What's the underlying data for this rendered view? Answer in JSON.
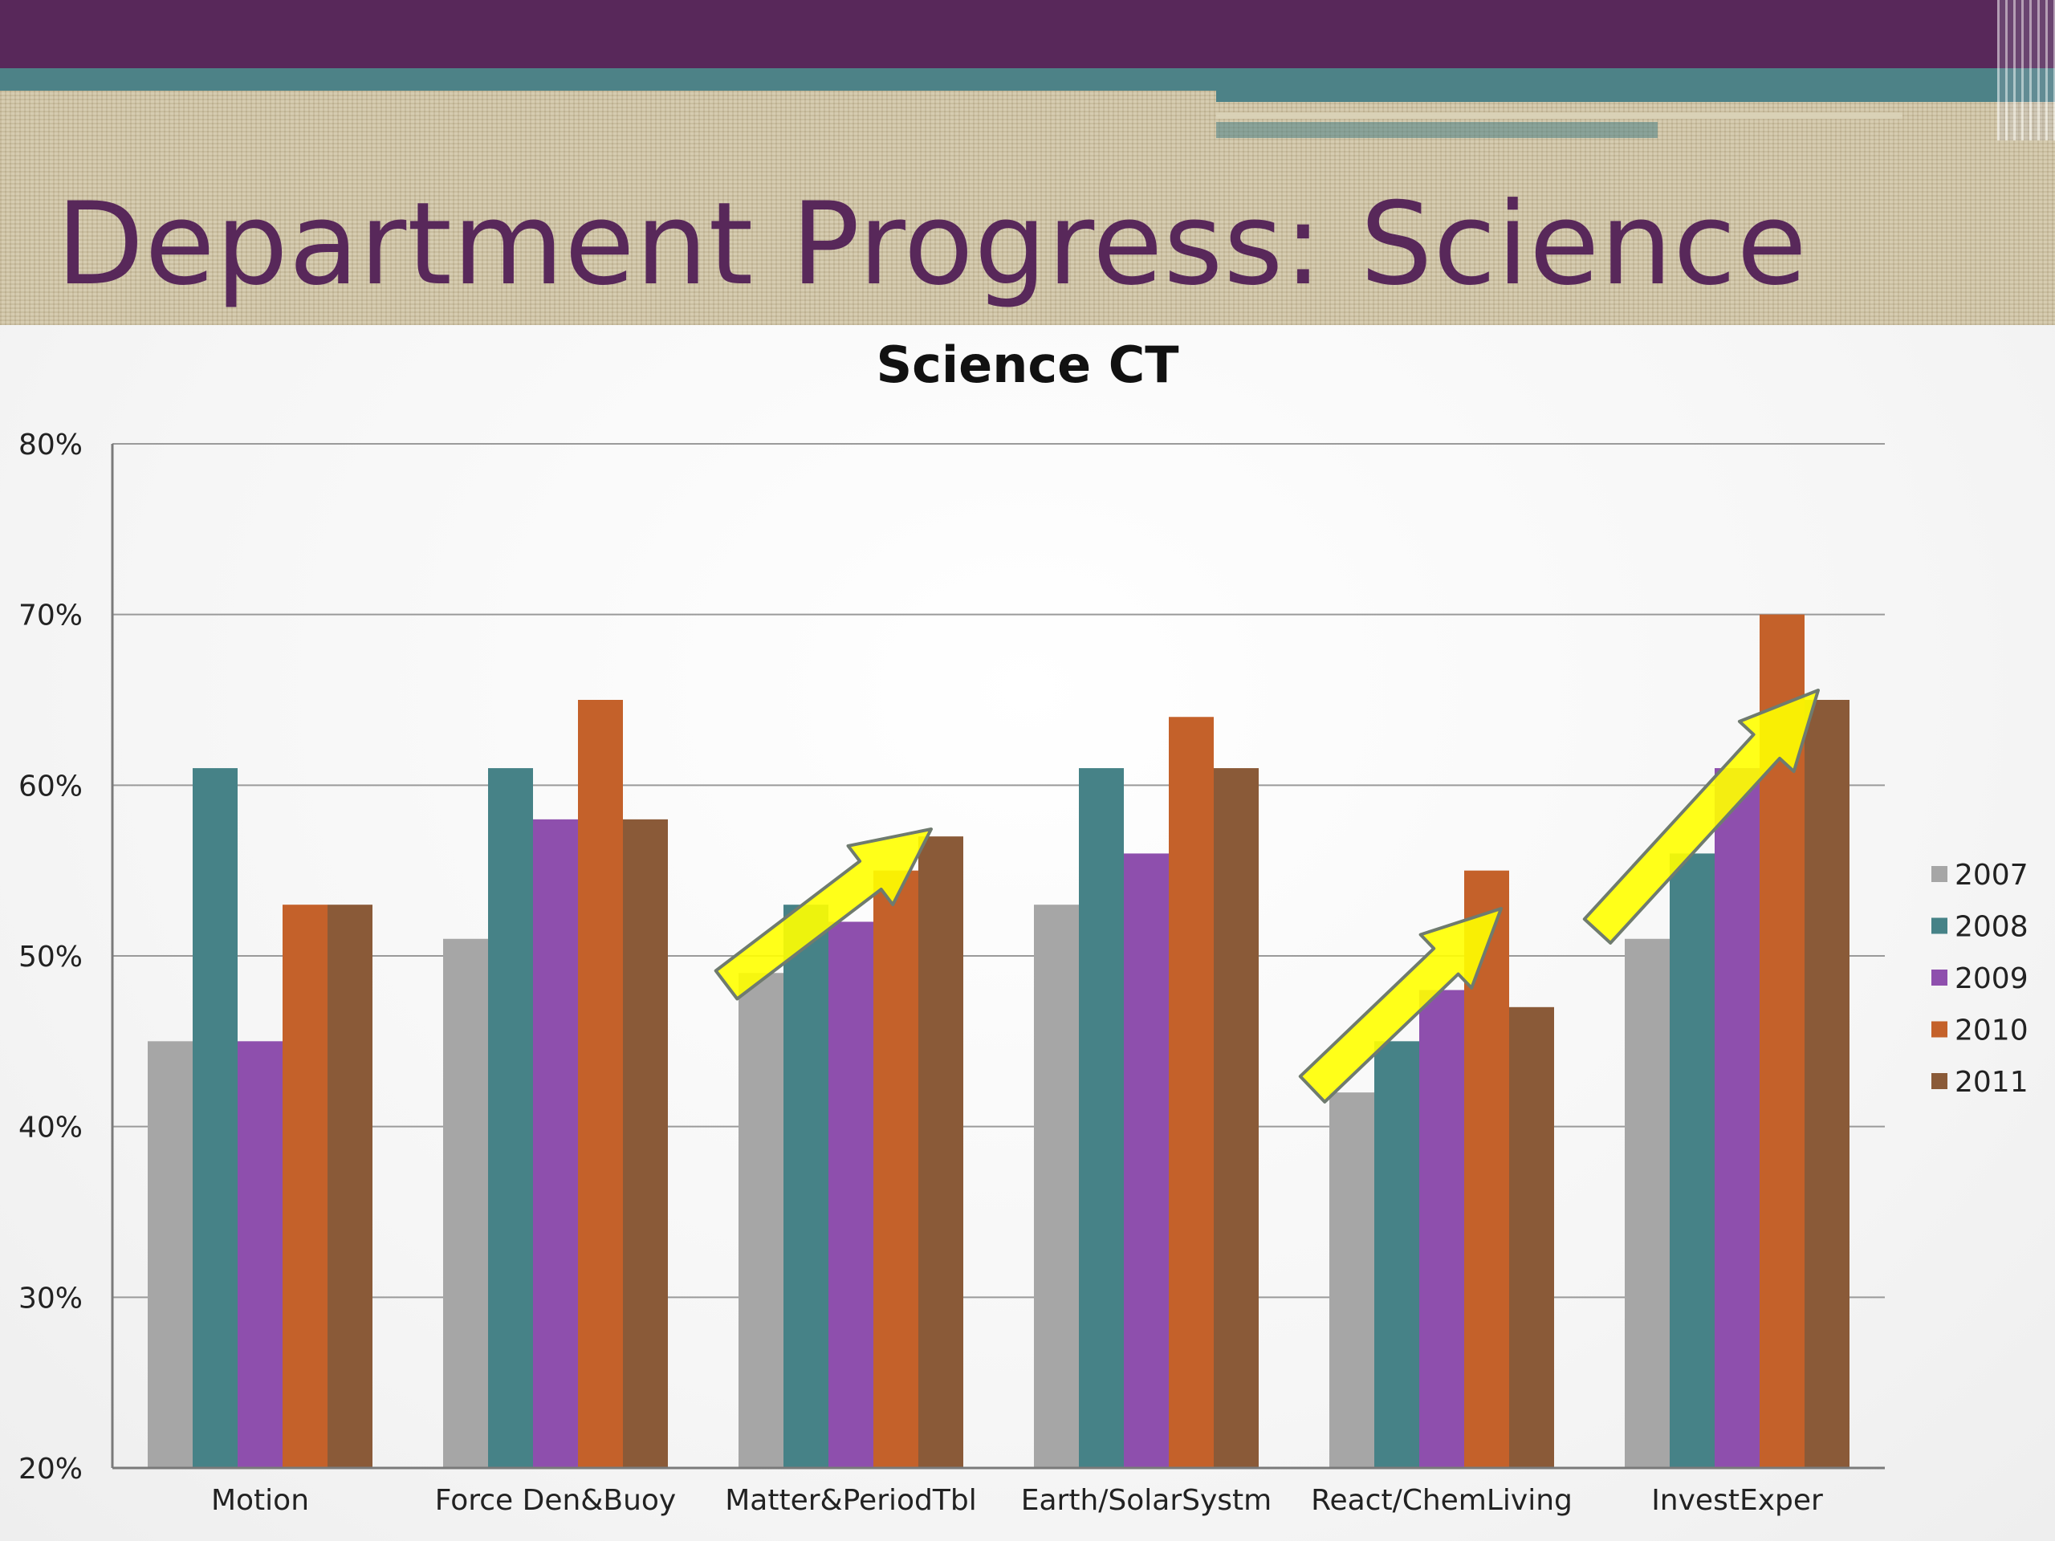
{
  "slide": {
    "title": "Department Progress: Science"
  },
  "chart_data": {
    "type": "bar",
    "title": "Science CT",
    "xlabel": "",
    "ylabel": "",
    "ylim": [
      20,
      80
    ],
    "yticks": [
      "20%",
      "30%",
      "40%",
      "50%",
      "60%",
      "70%",
      "80%"
    ],
    "grid": true,
    "legend_position": "right",
    "categories": [
      "Motion",
      "Force Den&Buoy",
      "Matter&PeriodTbl",
      "Earth/SolarSystm",
      "React/ChemLiving",
      "InvestExper"
    ],
    "series": [
      {
        "name": "2007",
        "color": "#a6a6a6",
        "values": [
          45,
          51,
          49,
          53,
          42,
          51
        ]
      },
      {
        "name": "2008",
        "color": "#468287",
        "values": [
          61,
          61,
          53,
          61,
          45,
          56
        ]
      },
      {
        "name": "2009",
        "color": "#8e4fad",
        "values": [
          45,
          58,
          52,
          56,
          48,
          61
        ]
      },
      {
        "name": "2010",
        "color": "#c4612a",
        "values": [
          53,
          65,
          55,
          64,
          55,
          70
        ]
      },
      {
        "name": "2011",
        "color": "#8a5a38",
        "values": [
          53,
          58,
          57,
          61,
          47,
          65
        ]
      }
    ],
    "annotations": [
      {
        "type": "arrow",
        "color": "#ffff00",
        "category": "Matter&PeriodTbl"
      },
      {
        "type": "arrow",
        "color": "#ffff00",
        "category": "React/ChemLiving"
      },
      {
        "type": "arrow",
        "color": "#ffff00",
        "category": "InvestExper"
      }
    ]
  }
}
